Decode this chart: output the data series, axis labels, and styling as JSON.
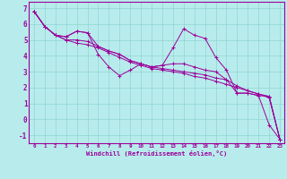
{
  "xlabel": "Windchill (Refroidissement éolien,°C)",
  "bg_color": "#b8ecec",
  "line_color": "#9b009b",
  "grid_color": "#90d4d4",
  "axis_color": "#9b009b",
  "xlim": [
    -0.5,
    23.4
  ],
  "ylim": [
    -1.5,
    7.4
  ],
  "xticks": [
    0,
    1,
    2,
    3,
    4,
    5,
    6,
    7,
    8,
    9,
    10,
    11,
    12,
    13,
    14,
    15,
    16,
    17,
    18,
    19,
    20,
    21,
    22,
    23
  ],
  "yticks": [
    -1,
    0,
    1,
    2,
    3,
    4,
    5,
    6,
    7
  ],
  "series": [
    [
      6.8,
      5.85,
      5.3,
      5.2,
      5.55,
      5.45,
      4.1,
      3.3,
      2.75,
      3.1,
      3.5,
      3.3,
      3.4,
      4.5,
      5.7,
      5.3,
      5.1,
      3.9,
      3.1,
      1.65,
      1.65,
      1.5,
      -0.35,
      -1.25
    ],
    [
      6.8,
      5.85,
      5.3,
      5.2,
      5.55,
      5.45,
      4.6,
      4.3,
      4.1,
      3.7,
      3.5,
      3.3,
      3.4,
      3.5,
      3.5,
      3.3,
      3.1,
      3.0,
      2.5,
      1.65,
      1.65,
      1.5,
      1.45,
      -1.25
    ],
    [
      6.8,
      5.85,
      5.3,
      5.0,
      5.0,
      4.9,
      4.6,
      4.3,
      4.1,
      3.7,
      3.5,
      3.3,
      3.2,
      3.1,
      3.0,
      2.9,
      2.8,
      2.6,
      2.5,
      2.1,
      1.8,
      1.6,
      1.45,
      -1.25
    ],
    [
      6.8,
      5.85,
      5.3,
      5.0,
      4.8,
      4.7,
      4.5,
      4.2,
      3.9,
      3.6,
      3.4,
      3.2,
      3.1,
      3.0,
      2.9,
      2.7,
      2.6,
      2.4,
      2.2,
      2.0,
      1.8,
      1.6,
      1.35,
      -1.25
    ]
  ]
}
